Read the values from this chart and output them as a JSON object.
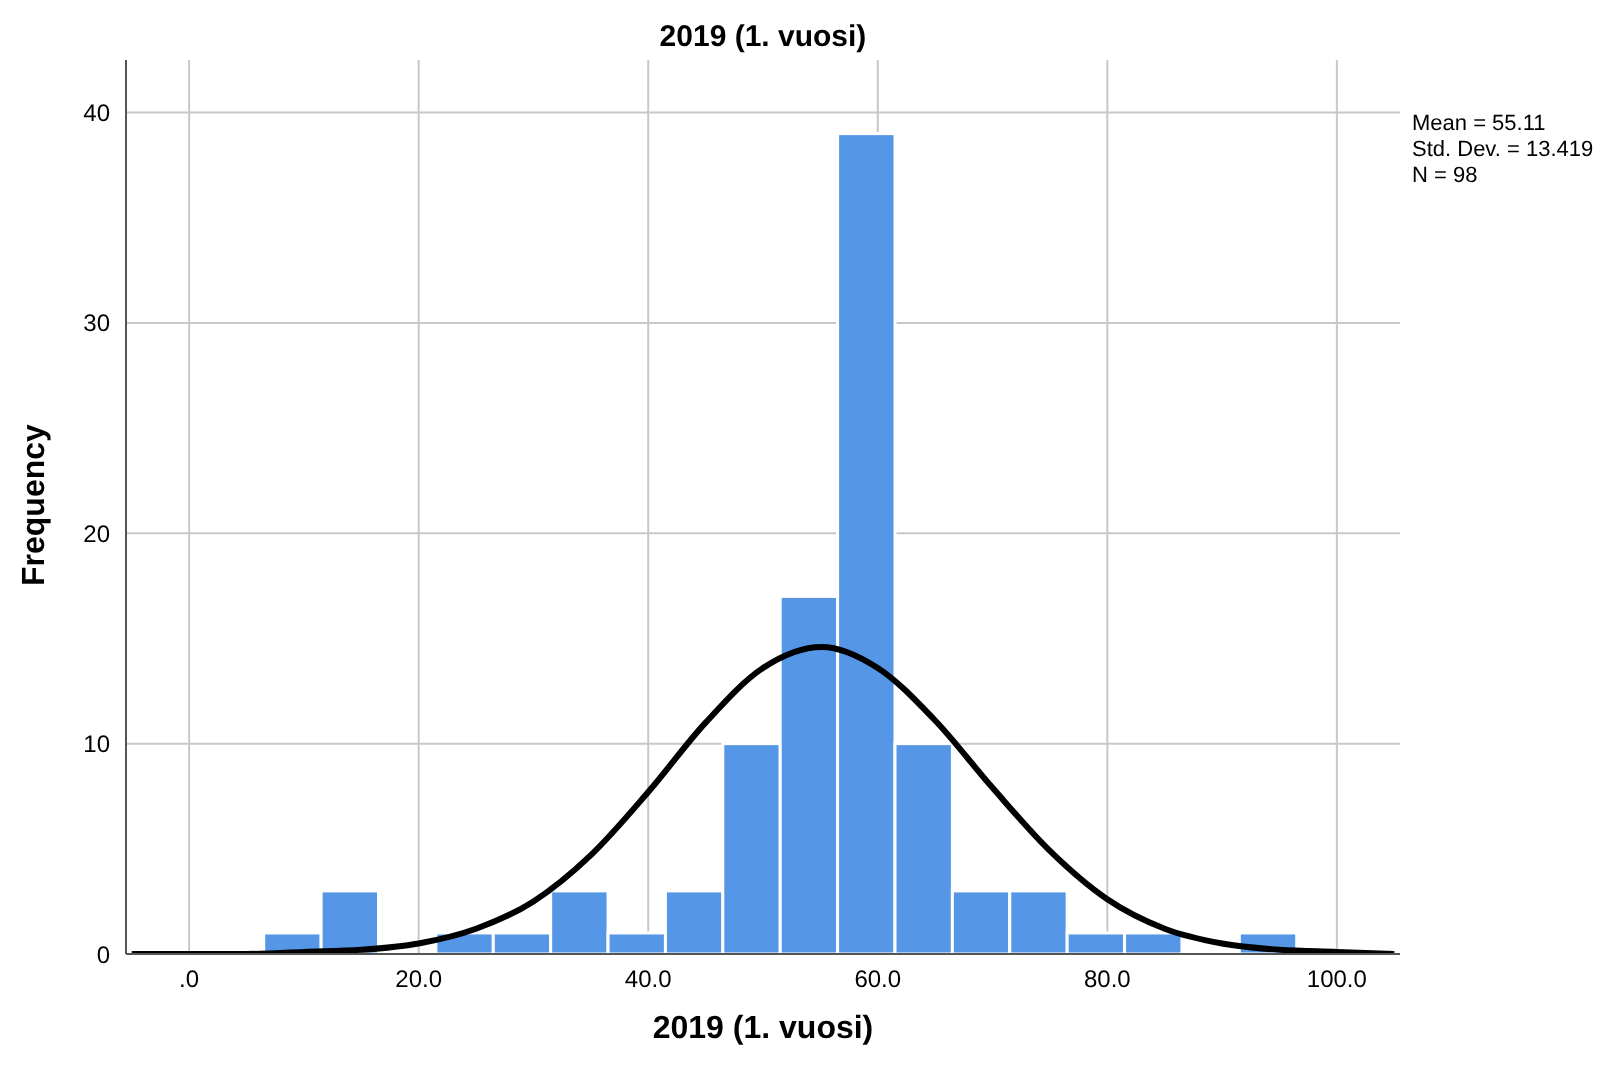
{
  "chart_data": {
    "type": "histogram",
    "title": "2019 (1. vuosi)",
    "xlabel": "2019 (1. vuosi)",
    "ylabel": "Frequency",
    "bins": [
      6.5,
      11.5,
      16.5,
      21.5,
      26.5,
      31.5,
      36.5,
      41.5,
      46.5,
      51.5,
      56.5,
      61.5,
      66.5,
      71.5,
      76.5,
      81.5,
      86.5,
      91.5,
      96.5
    ],
    "values": [
      1,
      3,
      0,
      1,
      1,
      3,
      1,
      3,
      10,
      17,
      39,
      10,
      3,
      3,
      1,
      1,
      0,
      1
    ],
    "color": "#5596e6",
    "series": [
      {
        "type": "line",
        "color": "#000000",
        "x": [
          -5,
          0,
          5,
          10,
          15,
          20,
          25,
          30,
          35,
          40,
          45,
          50,
          55.11,
          60,
          65,
          70,
          75,
          80,
          85,
          90,
          95,
          100,
          105
        ],
        "values": [
          0,
          0,
          0,
          0.1,
          0.2,
          0.5,
          1.2,
          2.5,
          4.7,
          7.7,
          11.0,
          13.6,
          14.6,
          13.6,
          11.1,
          7.9,
          4.9,
          2.6,
          1.2,
          0.5,
          0.2,
          0.1,
          0
        ]
      }
    ],
    "xlim": [
      -5.5,
      105.5
    ],
    "xticks": [
      {
        "value": 0,
        "label": ".0"
      },
      {
        "value": 20,
        "label": "20.0"
      },
      {
        "value": 40,
        "label": "40.0"
      },
      {
        "value": 60,
        "label": "60.0"
      },
      {
        "value": 80,
        "label": "80.0"
      },
      {
        "value": 100,
        "label": "100.0"
      }
    ],
    "ylim": [
      0,
      42.5
    ],
    "yticks": [
      0,
      10,
      20,
      30,
      40
    ],
    "grid": true,
    "marker": "none",
    "annotations": [
      "Mean = 55.11",
      "Std. Dev. = 13.419",
      "N = 98"
    ]
  }
}
